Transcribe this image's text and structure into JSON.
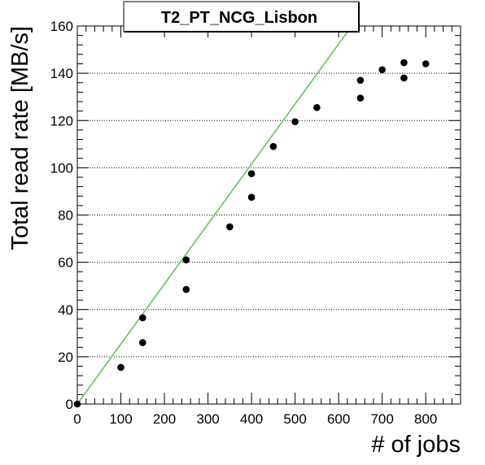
{
  "chart_data": {
    "type": "scatter",
    "title": "T2_PT_NCG_Lisbon",
    "xlabel": "# of jobs",
    "ylabel": "Total read rate [MB/s]",
    "xlim": [
      0,
      880
    ],
    "ylim": [
      0,
      160
    ],
    "x_ticks": [
      0,
      100,
      200,
      300,
      400,
      500,
      600,
      700,
      800
    ],
    "y_ticks": [
      0,
      20,
      40,
      60,
      80,
      100,
      120,
      140,
      160
    ],
    "grid": "y-dotted",
    "series": [
      {
        "points": [
          [
            0,
            0
          ],
          [
            100,
            15.5
          ],
          [
            150,
            36.5
          ],
          [
            150,
            26
          ],
          [
            250,
            61
          ],
          [
            250,
            48.5
          ],
          [
            350,
            75
          ],
          [
            400,
            97.5
          ],
          [
            400,
            87.5
          ],
          [
            450,
            109
          ],
          [
            500,
            119.5
          ],
          [
            550,
            125.5
          ],
          [
            650,
            137
          ],
          [
            650,
            129.5
          ],
          [
            700,
            141.5
          ],
          [
            750,
            144.5
          ],
          [
            750,
            138
          ],
          [
            800,
            144
          ]
        ],
        "color": "#000000"
      }
    ],
    "fit_line": {
      "color": "#5bc85b",
      "from": [
        0,
        0
      ],
      "to": [
        630,
        160
      ]
    }
  }
}
